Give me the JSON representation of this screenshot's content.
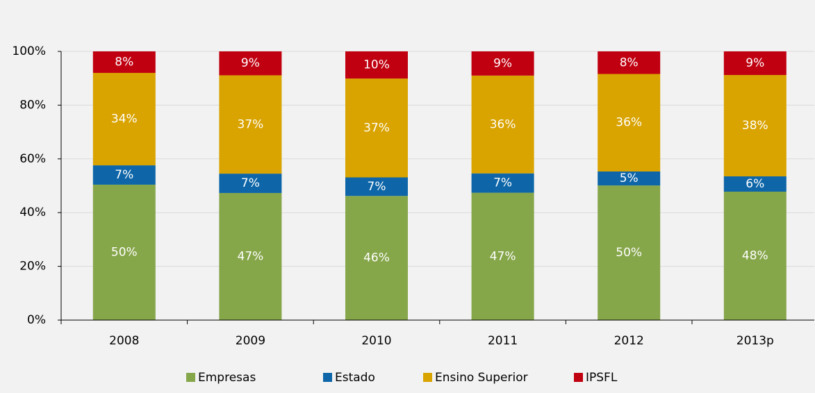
{
  "chart_data": {
    "type": "stacked_bar",
    "categories": [
      "2008",
      "2009",
      "2010",
      "2011",
      "2012",
      "2013p"
    ],
    "series": [
      {
        "name": "Empresas",
        "color": "#86a64a",
        "values": [
          50.4,
          47.3,
          46.2,
          47.4,
          50.1,
          47.8
        ],
        "value_labels": [
          "50%",
          "47%",
          "46%",
          "47%",
          "50%",
          "48%"
        ]
      },
      {
        "name": "Estado",
        "color": "#0e66a8",
        "values": [
          7.2,
          7.2,
          6.9,
          7.2,
          5.2,
          5.7
        ],
        "value_labels": [
          "7%",
          "7%",
          "7%",
          "7%",
          "5%",
          "6%"
        ]
      },
      {
        "name": "Ensino Superior",
        "color": "#d9a300",
        "values": [
          34.4,
          36.6,
          36.8,
          36.4,
          36.3,
          37.7
        ],
        "value_labels": [
          "34%",
          "37%",
          "37%",
          "36%",
          "36%",
          "38%"
        ]
      },
      {
        "name": "IPSFL",
        "color": "#c00010",
        "values": [
          8.0,
          8.9,
          10.1,
          9.0,
          8.4,
          8.8
        ],
        "value_labels": [
          "8%",
          "9%",
          "10%",
          "9%",
          "8%",
          "9%"
        ]
      }
    ],
    "ylim": [
      0,
      100
    ],
    "yticks": [
      {
        "value": 0,
        "label": "0%"
      },
      {
        "value": 20,
        "label": "20%"
      },
      {
        "value": 40,
        "label": "40%"
      },
      {
        "value": 60,
        "label": "60%"
      },
      {
        "value": 80,
        "label": "80%"
      },
      {
        "value": 100,
        "label": "100%"
      }
    ],
    "grid": true,
    "legend": "bottom"
  }
}
